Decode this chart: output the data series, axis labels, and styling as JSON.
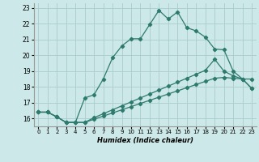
{
  "xlabel": "Humidex (Indice chaleur)",
  "bg_color": "#cce8e8",
  "grid_color": "#aacccc",
  "line_color": "#2e7b6e",
  "xlim": [
    -0.5,
    23.5
  ],
  "ylim": [
    15.5,
    23.3
  ],
  "xticks": [
    0,
    1,
    2,
    3,
    4,
    5,
    6,
    7,
    8,
    9,
    10,
    11,
    12,
    13,
    14,
    15,
    16,
    17,
    18,
    19,
    20,
    21,
    22,
    23
  ],
  "yticks": [
    16,
    17,
    18,
    19,
    20,
    21,
    22,
    23
  ],
  "line1_x": [
    0,
    1,
    2,
    3,
    4,
    5,
    6,
    7,
    8,
    9,
    10,
    11,
    12,
    13,
    14,
    15,
    16,
    17,
    18,
    19,
    20,
    21,
    22,
    23
  ],
  "line1_y": [
    16.4,
    16.4,
    16.1,
    15.75,
    15.75,
    17.3,
    17.5,
    18.5,
    19.85,
    20.6,
    21.05,
    21.05,
    21.95,
    22.85,
    22.3,
    22.75,
    21.75,
    21.55,
    21.15,
    20.4,
    20.35,
    19.0,
    18.5,
    17.9
  ],
  "line2_x": [
    0,
    1,
    2,
    3,
    4,
    5,
    6,
    7,
    8,
    9,
    10,
    11,
    12,
    13,
    14,
    15,
    16,
    17,
    18,
    19,
    20,
    21,
    22,
    23
  ],
  "line2_y": [
    16.4,
    16.4,
    16.1,
    15.75,
    15.75,
    15.75,
    16.05,
    16.3,
    16.55,
    16.8,
    17.05,
    17.3,
    17.55,
    17.8,
    18.05,
    18.3,
    18.55,
    18.8,
    19.05,
    19.75,
    19.0,
    18.7,
    18.5,
    18.5
  ],
  "line3_x": [
    0,
    1,
    2,
    3,
    4,
    5,
    6,
    7,
    8,
    9,
    10,
    11,
    12,
    13,
    14,
    15,
    16,
    17,
    18,
    19,
    20,
    21,
    22,
    23
  ],
  "line3_y": [
    16.4,
    16.4,
    16.1,
    15.75,
    15.75,
    15.75,
    15.95,
    16.15,
    16.35,
    16.55,
    16.75,
    16.95,
    17.15,
    17.35,
    17.55,
    17.75,
    17.95,
    18.15,
    18.35,
    18.55,
    18.6,
    18.55,
    18.5,
    17.9
  ]
}
